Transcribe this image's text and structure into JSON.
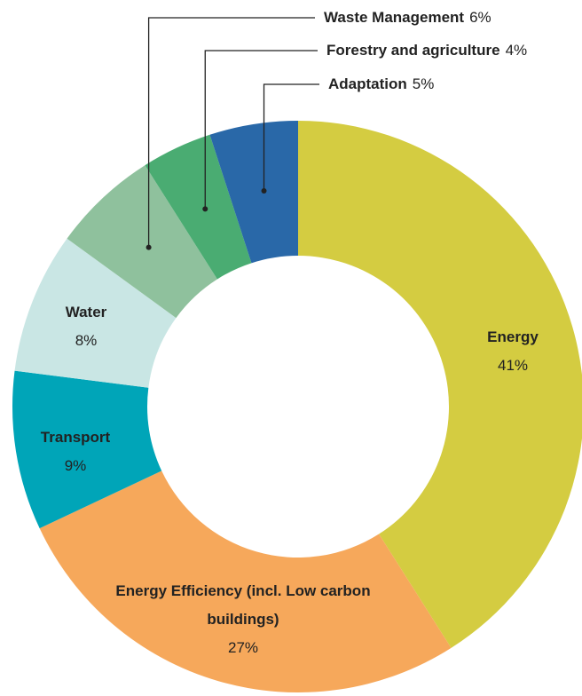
{
  "chart_data": {
    "type": "donut",
    "categories": [
      "Energy",
      "Energy Efficiency (incl. Low carbon buildings)",
      "Transport",
      "Water",
      "Waste Management",
      "Forestry and agriculture",
      "Adaptation"
    ],
    "values": [
      41,
      27,
      9,
      8,
      6,
      4,
      5
    ],
    "value_labels": [
      "41%",
      "27%",
      "9%",
      "8%",
      "6%",
      "4%",
      "5%"
    ],
    "colors": [
      "#d4cc41",
      "#f6a85b",
      "#00a5b8",
      "#c9e6e4",
      "#8fc19d",
      "#4aac72",
      "#2968a8"
    ]
  }
}
